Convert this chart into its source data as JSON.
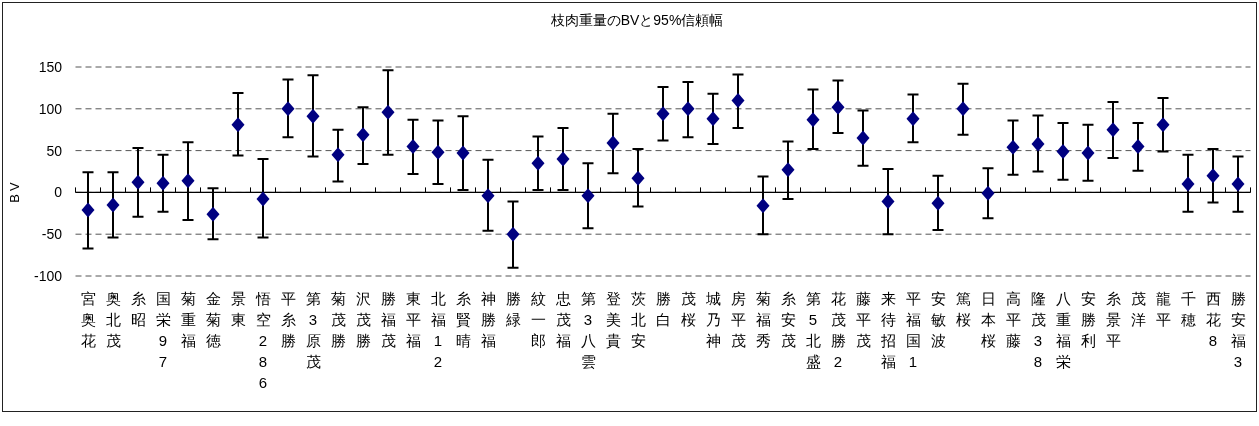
{
  "chart_data": {
    "type": "scatter",
    "title": "枝肉重量のBVと95%信頼幅",
    "ylabel": "BV",
    "categories": [
      "宮奥花",
      "奥北茂",
      "糸昭",
      "国栄97",
      "菊重福",
      "金菊徳",
      "景東",
      "悟空286",
      "平糸勝",
      "第3原茂",
      "菊茂勝",
      "沢茂勝",
      "勝福茂",
      "東平福",
      "北福12",
      "糸賢晴",
      "神勝福",
      "勝緑",
      "紋一郎",
      "忠茂福",
      "第3八雲",
      "登美貴",
      "茨北安",
      "勝白",
      "茂桜",
      "城乃神",
      "房平茂",
      "菊福秀",
      "糸安茂",
      "第5北盛",
      "花茂勝2",
      "藤平茂",
      "来待招福",
      "平福国1",
      "安敏波",
      "篤桜",
      "日本桜",
      "高平藤",
      "隆茂38",
      "八重福栄",
      "安勝利",
      "糸景平",
      "茂洋",
      "龍平",
      "千穂",
      "西花8",
      "勝安福3"
    ],
    "values": [
      -21,
      -15,
      12,
      11,
      14,
      -26,
      81,
      -8,
      100,
      91,
      45,
      69,
      96,
      55,
      48,
      47,
      -4,
      -50,
      35,
      40,
      -4,
      59,
      17,
      94,
      100,
      88,
      110,
      -16,
      27,
      87,
      102,
      65,
      -11,
      88,
      -13,
      100,
      -1,
      54,
      58,
      49,
      47,
      75,
      55,
      81,
      10,
      20,
      10
    ],
    "errors": [
      [
        -67,
        24
      ],
      [
        -54,
        24
      ],
      [
        -29,
        53
      ],
      [
        -23,
        45
      ],
      [
        -33,
        60
      ],
      [
        -56,
        5
      ],
      [
        44,
        119
      ],
      [
        -54,
        40
      ],
      [
        66,
        135
      ],
      [
        43,
        140
      ],
      [
        13,
        75
      ],
      [
        34,
        102
      ],
      [
        45,
        146
      ],
      [
        22,
        87
      ],
      [
        10,
        86
      ],
      [
        3,
        91
      ],
      [
        -46,
        39
      ],
      [
        -90,
        -11
      ],
      [
        3,
        67
      ],
      [
        3,
        77
      ],
      [
        -43,
        35
      ],
      [
        23,
        94
      ],
      [
        -17,
        52
      ],
      [
        62,
        126
      ],
      [
        66,
        132
      ],
      [
        58,
        118
      ],
      [
        77,
        141
      ],
      [
        -50,
        19
      ],
      [
        -8,
        61
      ],
      [
        52,
        123
      ],
      [
        71,
        134
      ],
      [
        32,
        98
      ],
      [
        -50,
        28
      ],
      [
        60,
        117
      ],
      [
        -45,
        20
      ],
      [
        69,
        130
      ],
      [
        -31,
        29
      ],
      [
        21,
        86
      ],
      [
        25,
        92
      ],
      [
        15,
        83
      ],
      [
        14,
        81
      ],
      [
        41,
        108
      ],
      [
        26,
        83
      ],
      [
        49,
        113
      ],
      [
        -23,
        45
      ],
      [
        -12,
        52
      ],
      [
        -23,
        43
      ]
    ],
    "color": "#000080",
    "marker": "diamond",
    "ylim": [
      -100,
      150
    ],
    "yticks": [
      -100,
      -50,
      0,
      50,
      100,
      150
    ],
    "grid": "y"
  }
}
